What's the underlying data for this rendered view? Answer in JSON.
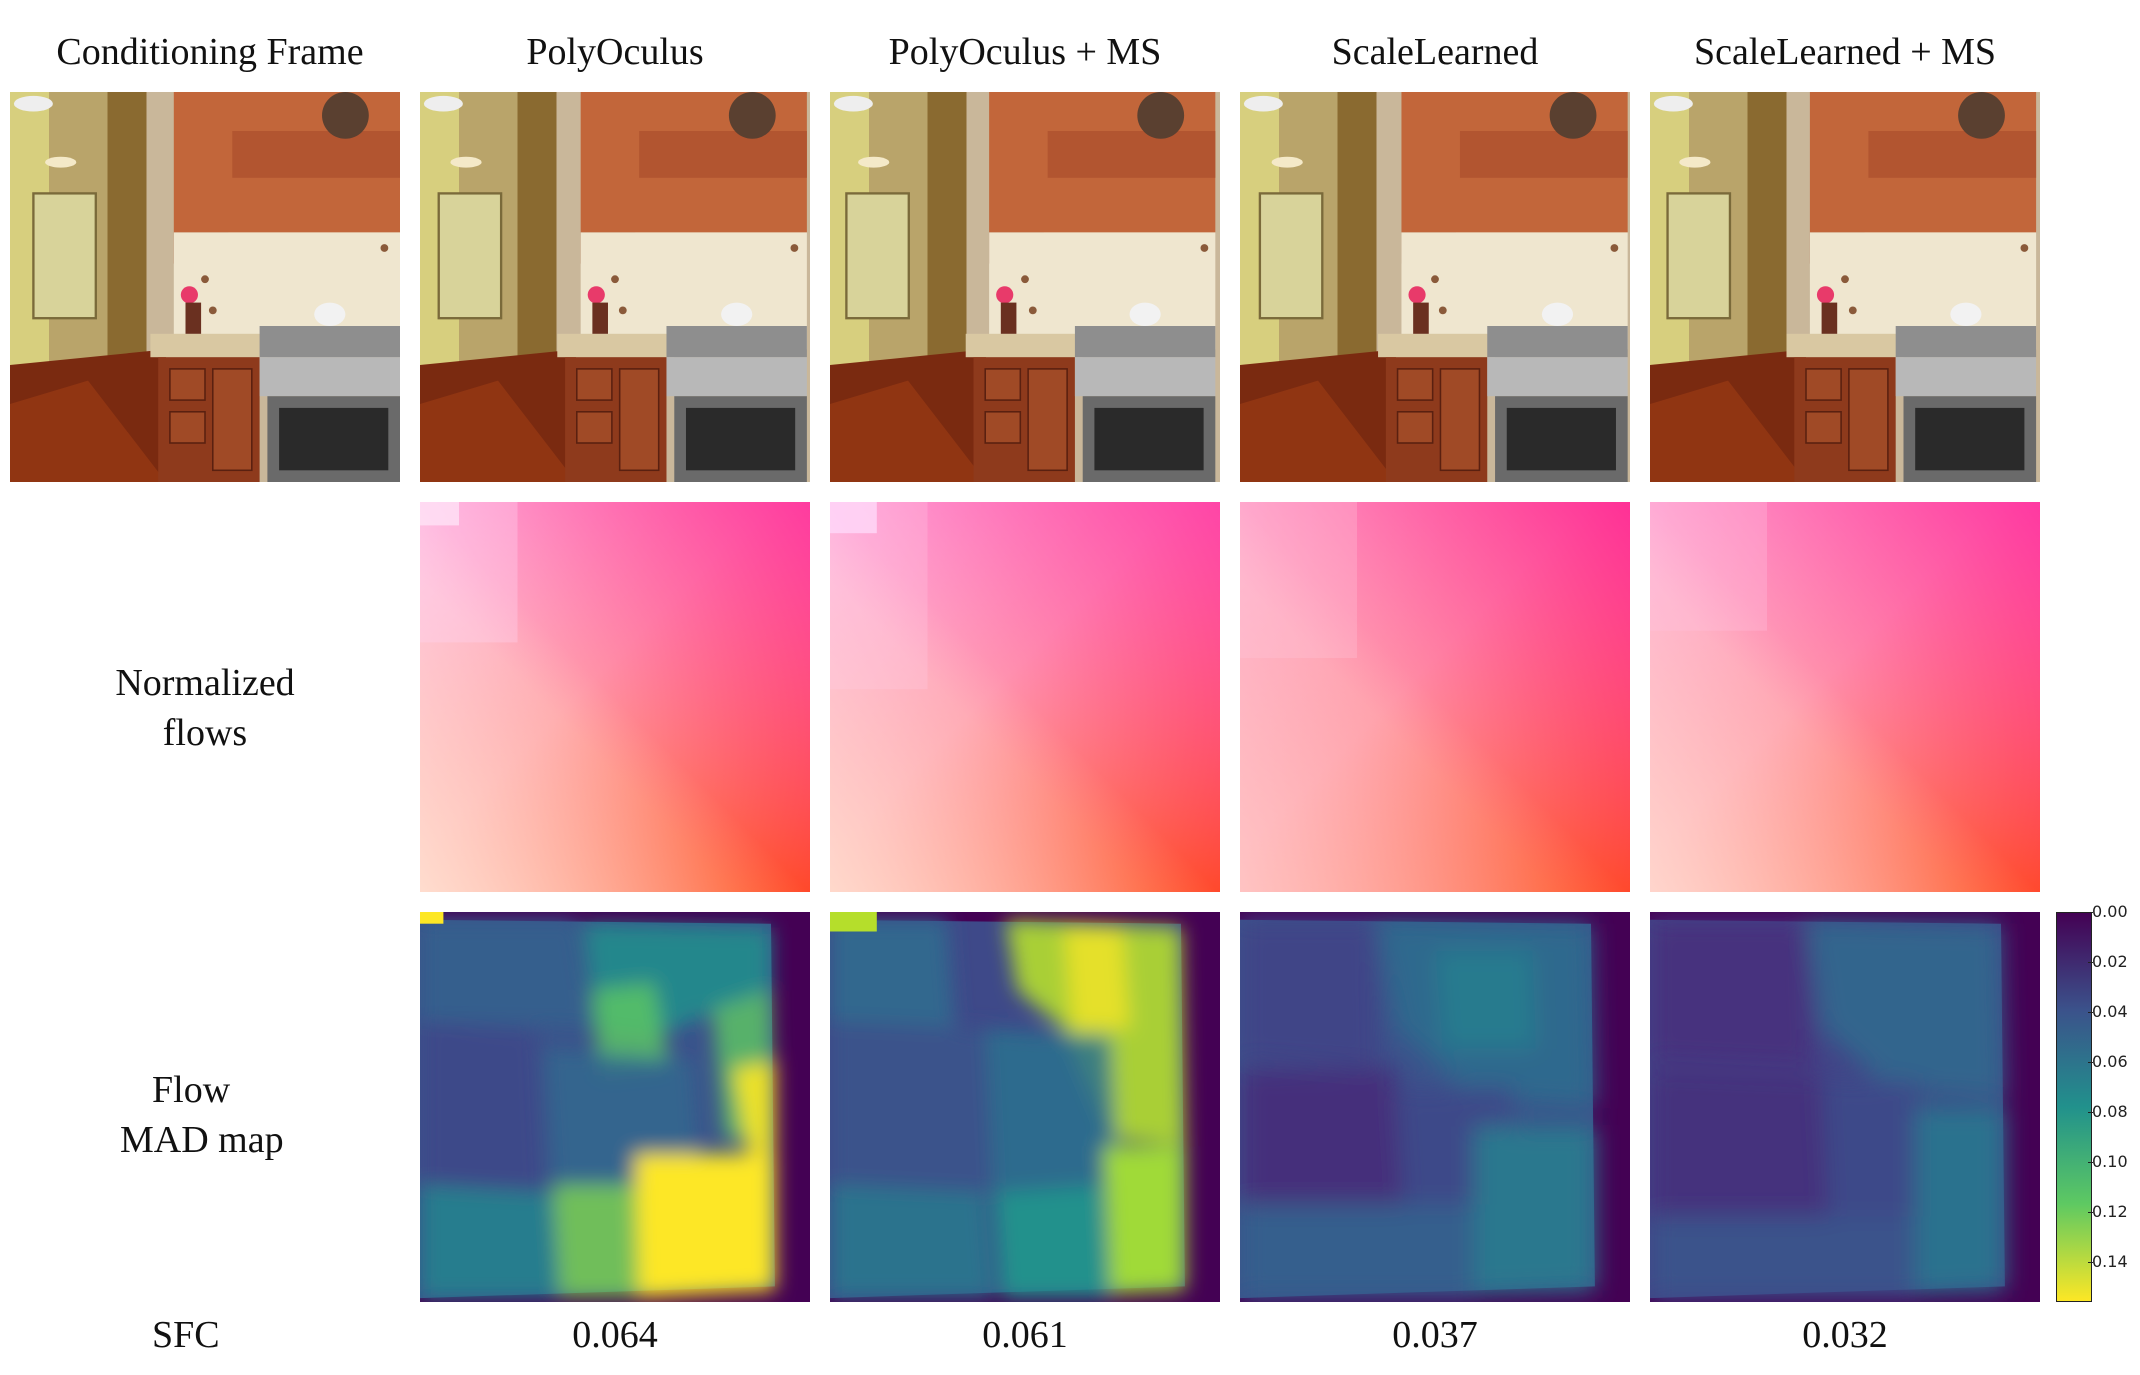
{
  "columns": [
    "Conditioning Frame",
    "PolyOculus",
    "PolyOculus + MS",
    "ScaleLearned",
    "ScaleLearned + MS"
  ],
  "rows": {
    "flows_line1": "Normalized",
    "flows_line2": "flows",
    "mad_line1": "Flow",
    "mad_line2": "MAD map",
    "sfc": "SFC"
  },
  "sfc_values": [
    "0.064",
    "0.061",
    "0.037",
    "0.032"
  ],
  "colorbar": {
    "colormap": "viridis_r",
    "ticks": [
      "0.00",
      "0.02",
      "0.04",
      "0.06",
      "0.08",
      "0.10",
      "0.12",
      "0.14"
    ],
    "colors": {
      "low": "#440154",
      "mid": "#21918c",
      "high": "#fde725"
    }
  }
}
